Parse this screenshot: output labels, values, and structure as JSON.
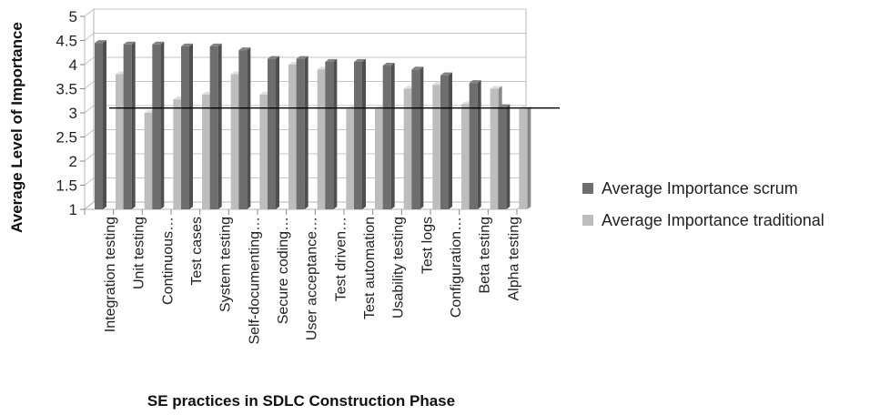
{
  "chart_data": {
    "type": "bar",
    "title": "",
    "xlabel": "SE practices in SDLC Construction Phase",
    "ylabel": "Average Level of Importance",
    "ylim": [
      1,
      5
    ],
    "yticks": [
      "1",
      "1.5",
      "2",
      "2.5",
      "3",
      "3.5",
      "4",
      "4.5",
      "5"
    ],
    "categories": [
      "Integration testing",
      "Unit testing",
      "Continuous…",
      "Test cases",
      "System testing",
      "Self-documenting…",
      "Secure coding…",
      "User acceptance…",
      "Test driven…",
      "Test automation",
      "Usability testing",
      "Test logs",
      "Configuration…",
      "Beta testing",
      "Alpha testing"
    ],
    "series": [
      {
        "name": "Average Importance scrum",
        "color": "#6e6e6e",
        "values": [
          4.45,
          4.42,
          4.42,
          4.38,
          4.38,
          4.3,
          4.12,
          4.12,
          4.06,
          4.06,
          3.98,
          3.9,
          3.78,
          3.62,
          3.12
        ]
      },
      {
        "name": "Average Importance traditional",
        "color": "#bdbdbd",
        "values": [
          3.8,
          3.0,
          3.28,
          3.38,
          3.8,
          3.38,
          4.0,
          3.9,
          3.08,
          3.08,
          3.5,
          3.58,
          3.18,
          3.5,
          3.08
        ]
      }
    ],
    "reference_line": 3.1,
    "legend_position": "right",
    "grid": true
  }
}
